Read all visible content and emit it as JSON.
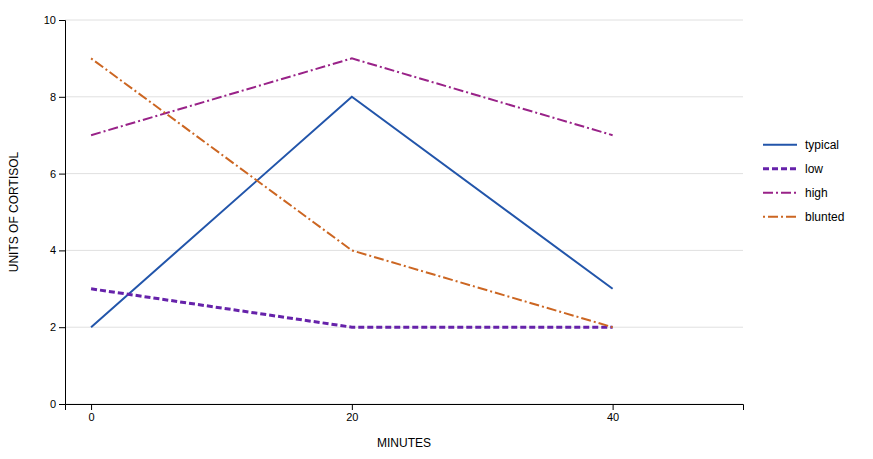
{
  "chart_data": {
    "type": "line",
    "x": [
      0,
      20,
      40
    ],
    "series": [
      {
        "name": "typical",
        "color": "#2255aa",
        "values": [
          2,
          8,
          3
        ],
        "line_style": "solid"
      },
      {
        "name": "low",
        "color": "#6622aa",
        "values": [
          3,
          2,
          2
        ],
        "line_style": "dashed"
      },
      {
        "name": "high",
        "color": "#992288",
        "values": [
          7,
          9,
          7
        ],
        "line_style": "dashdot"
      },
      {
        "name": "blunted",
        "color": "#cc6622",
        "values": [
          9,
          4,
          2
        ],
        "line_style": "dotdash"
      }
    ],
    "xlabel": "MINUTES",
    "ylabel": "UNITS OF CORTISOL",
    "xlim": [
      -2,
      50
    ],
    "ylim": [
      0,
      10
    ],
    "xticks": [
      0,
      20,
      40
    ],
    "yticks": [
      0,
      2,
      4,
      6,
      8,
      10
    ],
    "grid": true,
    "legend": "right"
  }
}
